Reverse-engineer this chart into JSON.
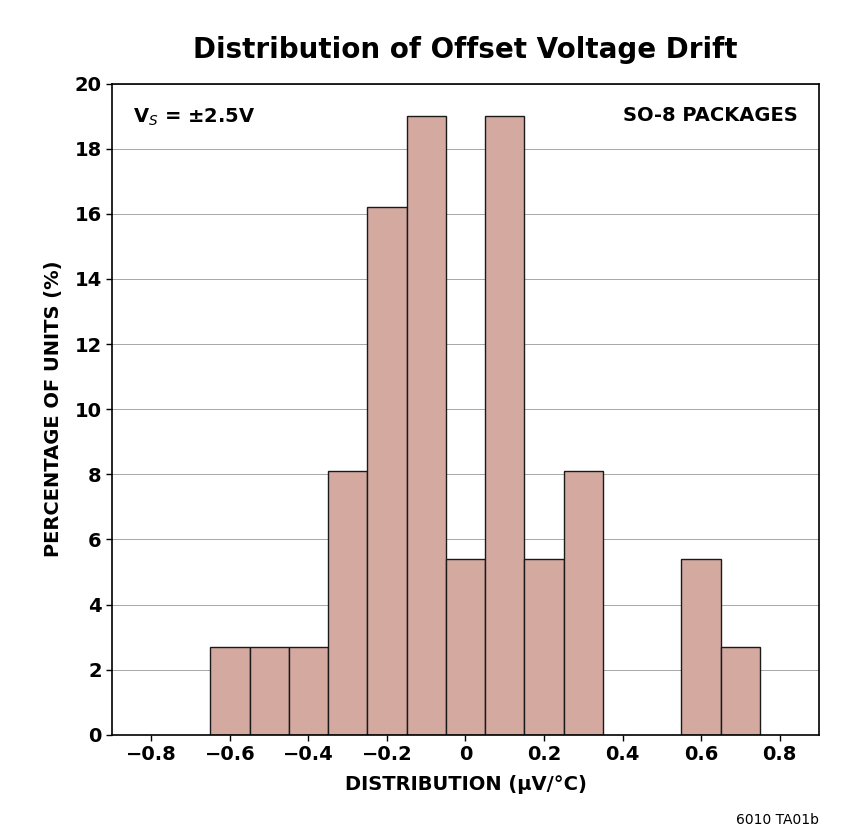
{
  "title": "Distribution of Offset Voltage Drift",
  "xlabel": "DISTRIBUTION (μV/°C)",
  "ylabel": "PERCENTAGE OF UNITS (%)",
  "annotation_left": "V$_S$ = ±2.5V",
  "annotation_right": "SO-8 PACKAGES",
  "footnote": "6010 TA01b",
  "bar_centers": [
    -0.6,
    -0.5,
    -0.4,
    -0.3,
    -0.2,
    -0.1,
    0.0,
    0.1,
    0.2,
    0.3,
    0.6,
    0.7
  ],
  "bar_heights": [
    2.7,
    2.7,
    2.7,
    8.1,
    16.2,
    19.0,
    5.4,
    19.0,
    5.4,
    8.1,
    5.4,
    2.7
  ],
  "xlim": [
    -0.9,
    0.9
  ],
  "ylim": [
    0,
    20
  ],
  "yticks": [
    0,
    2,
    4,
    6,
    8,
    10,
    12,
    14,
    16,
    18,
    20
  ],
  "xticks": [
    -0.8,
    -0.6,
    -0.4,
    -0.2,
    0.0,
    0.2,
    0.4,
    0.6,
    0.8
  ],
  "xtick_labels": [
    "−0.8",
    "−0.6",
    "−0.4",
    "−0.2",
    "0",
    "0.2",
    "0.4",
    "0.6",
    "0.8"
  ],
  "bar_color": "#d4a9a0",
  "bar_edgecolor": "#1a1a1a",
  "background_color": "#ffffff",
  "bar_width": 0.1,
  "title_fontsize": 20,
  "tick_fontsize": 14,
  "label_fontsize": 14,
  "annot_fontsize": 14
}
